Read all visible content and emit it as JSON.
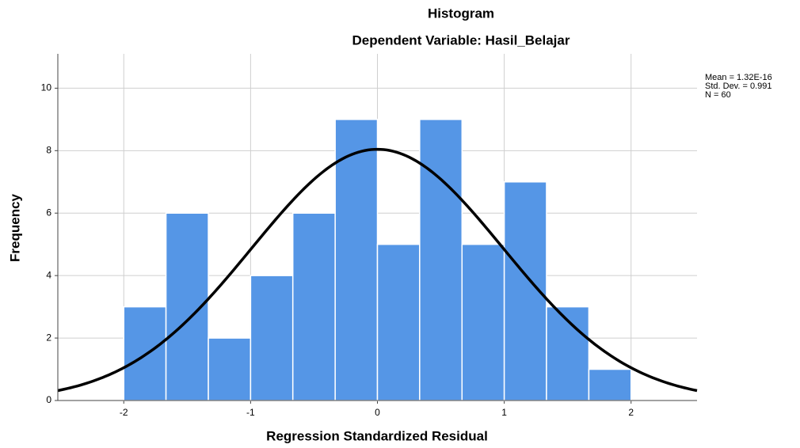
{
  "chart_data": {
    "type": "histogram",
    "title": "Histogram",
    "subtitle": "Dependent Variable: Hasil_Belajar",
    "x_label": "Regression Standardized Residual",
    "y_label": "Frequency",
    "bins": [
      -2,
      -1.667,
      -1.333,
      -1,
      -0.667,
      -0.333,
      0,
      0.333,
      0.667,
      1,
      1.333,
      1.667,
      2
    ],
    "values": [
      3,
      6,
      2,
      4,
      6,
      9,
      5,
      9,
      5,
      7,
      3,
      1
    ],
    "color": "#5596e6",
    "curve_color": "#000000",
    "stats": [
      {
        "value": 1.32e-16,
        "label": "Mean = 1.32E-16"
      },
      {
        "value": 0.991,
        "label": "Std. Dev. = 0.991"
      },
      {
        "value": 60,
        "label": "N = 60"
      }
    ],
    "xlim": [
      -2.52,
      2.52
    ],
    "ylim": [
      0,
      11.1
    ],
    "xticks": [
      -2,
      -1,
      0,
      1,
      2
    ],
    "yticks": [
      0,
      2,
      4,
      6,
      8,
      10
    ],
    "grid": true
  }
}
